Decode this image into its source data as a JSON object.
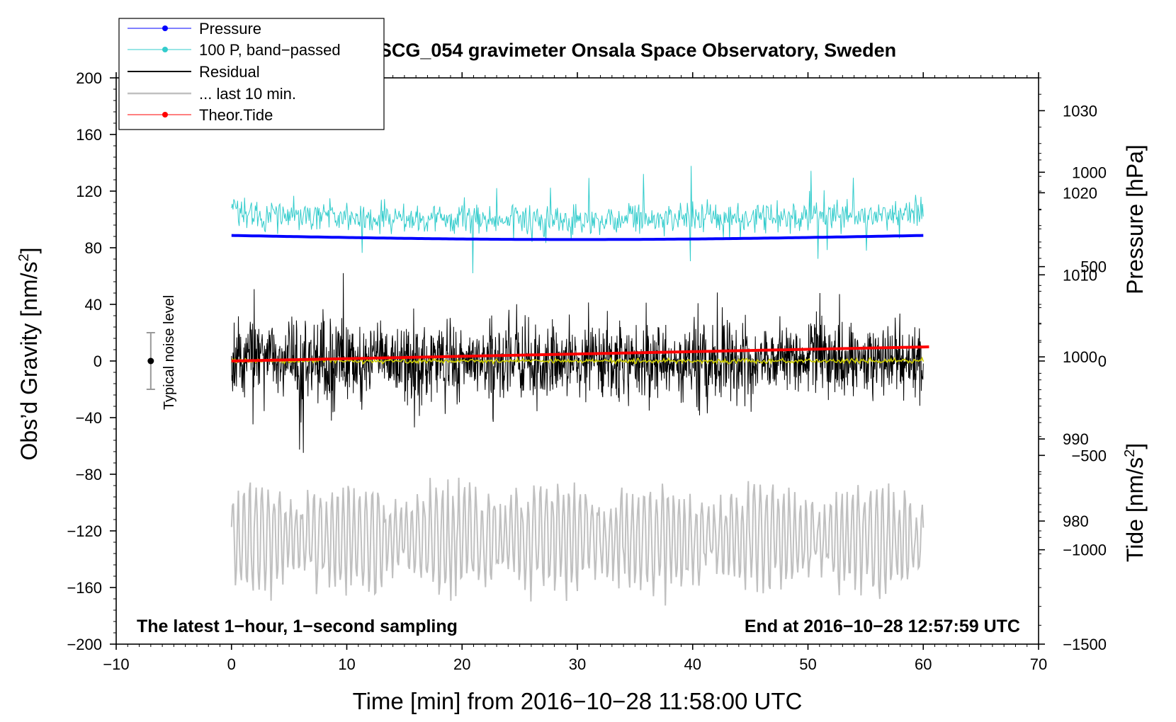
{
  "chart_data": {
    "type": "line",
    "title": "SCG_054 gravimeter Onsala Space Observatory, Sweden",
    "xlabel": "Time [min] from 2016−10−28 11:58:00 UTC",
    "ylabel_main": "Obs’d Gravity [nm/s",
    "ylabel_sup": "2",
    "ylabel_close": "]",
    "ylabel_pressure": "Pressure [hPa]",
    "ylabel_tide": "Tide [nm/s",
    "ylabel_tide_sup": "2",
    "ylabel_tide_close": "]",
    "xlim": [
      -10,
      70
    ],
    "ylim": [
      -200,
      200
    ],
    "pressure_ylim": [
      965,
      1034
    ],
    "tide_ylim": [
      -1500,
      1500
    ],
    "x_ticks": [
      -10,
      0,
      10,
      20,
      30,
      40,
      50,
      60,
      70
    ],
    "x_tick_labels": [
      "−10",
      "0",
      "10",
      "20",
      "30",
      "40",
      "50",
      "60",
      "70"
    ],
    "y_ticks": [
      200,
      160,
      120,
      80,
      40,
      0,
      -40,
      -80,
      -120,
      -160,
      -200
    ],
    "y_tick_labels": [
      "200",
      "160",
      "120",
      "80",
      "40",
      "0",
      "−40",
      "−80",
      "−120",
      "−160",
      "−200"
    ],
    "pressure_ticks": [
      1030,
      1020,
      1010,
      1000,
      990,
      980
    ],
    "pressure_tick_labels": [
      "1030",
      "1020",
      "1010",
      "1000",
      "990",
      "980"
    ],
    "tide_ticks": [
      1000,
      500,
      0,
      -500,
      -1000,
      -1500
    ],
    "tide_tick_labels": [
      "1000",
      "500",
      "0",
      "−500",
      "−1000",
      "−1500"
    ],
    "legend": {
      "position": "top-left",
      "entries": [
        {
          "label": "Pressure",
          "color": "#0000ff",
          "marker": true
        },
        {
          "label": "100 P, band−passed",
          "color": "#33cccc",
          "marker": true
        },
        {
          "label": "Residual",
          "color": "#000000",
          "marker": false
        },
        {
          "label": "... last 10 min.",
          "color": "#c0c0c0",
          "marker": false
        },
        {
          "label": "Theor.Tide",
          "color": "#ff0000",
          "marker": true
        }
      ]
    },
    "annotations": {
      "bottom_left": "The latest 1−hour, 1−second sampling",
      "bottom_right": "End at 2016−10−28 12:57:59 UTC",
      "noise_label": "Typical noise level"
    },
    "noise_bar": {
      "x": -7,
      "center": 0,
      "halfwidth": 20
    },
    "series": [
      {
        "name": "Pressure",
        "color": "#0000ff",
        "x_range": [
          0,
          60
        ],
        "start": 1014.8,
        "mid": 1014.3,
        "end": 1014.8
      },
      {
        "name": "100 P, band−passed",
        "color": "#33cccc",
        "x_range": [
          0,
          60
        ],
        "center": 104,
        "amplitude": 12
      },
      {
        "name": "Residual",
        "color": "#000000",
        "x_range": [
          0,
          60
        ],
        "center": 0,
        "amplitude": 30
      },
      {
        "name": "Residual smoothed",
        "color": "#cccc00",
        "x_range": [
          0,
          60
        ],
        "center": 0
      },
      {
        "name": "... last 10 min.",
        "color": "#c0c0c0",
        "x_range": [
          0,
          60
        ],
        "center": -125,
        "amplitude": 35
      },
      {
        "name": "Theor.Tide",
        "color": "#ff0000",
        "x_range": [
          0,
          60.5
        ],
        "start_tide": 0,
        "end_tide": 75
      }
    ]
  }
}
